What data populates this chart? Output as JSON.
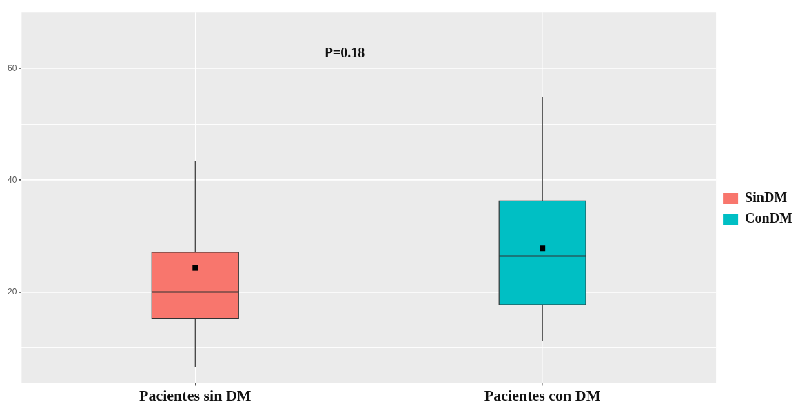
{
  "chart_data": {
    "type": "box",
    "categories": [
      "Pacientes sin DM",
      "Pacientes con DM"
    ],
    "series": [
      {
        "name": "SinDM",
        "color": "#f8766d",
        "boxes": [
          {
            "low": 6.6,
            "q1": 15.2,
            "median": 20,
            "q3": 27.1,
            "high": 43.5,
            "mean": 24.3
          },
          null
        ]
      },
      {
        "name": "ConDM",
        "color": "#00bfc4",
        "boxes": [
          null,
          {
            "low": 11.3,
            "q1": 17.7,
            "median": 26.4,
            "q3": 36.3,
            "high": 54.9,
            "mean": 27.8
          }
        ]
      }
    ],
    "ylim": [
      3.7,
      70
    ],
    "yticks": [
      {
        "value": 10,
        "label": null
      },
      20,
      {
        "value": 30,
        "label": null
      },
      40,
      {
        "value": 50,
        "label": null
      },
      60
    ],
    "grid": true,
    "legend": "right",
    "annotations": [
      "P=0.18"
    ]
  }
}
